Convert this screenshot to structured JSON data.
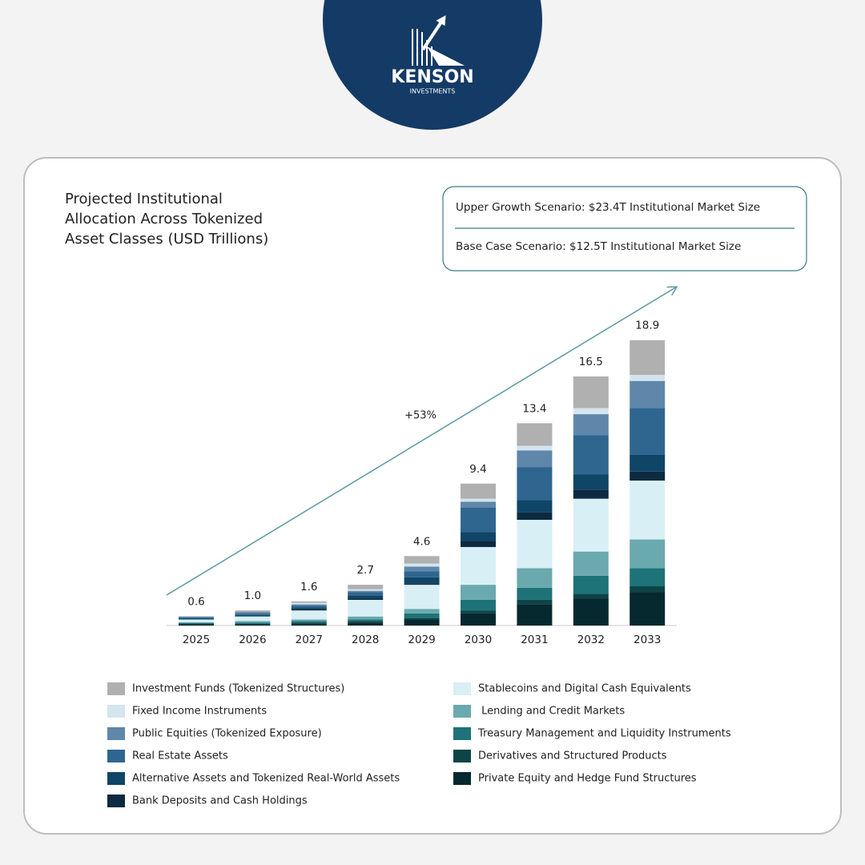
{
  "logo": {
    "name": "KENSON",
    "tagline": "INVESTMENTS"
  },
  "chart_data": {
    "type": "stacked-bar",
    "title": [
      "Projected Institutional",
      "Allocation Across Tokenized",
      "Asset Classes (USD Trillions)"
    ],
    "scenarios": [
      "Upper Growth Scenario: $23.4T Institutional Market Size",
      "Base Case Scenario: $12.5T Institutional Market Size"
    ],
    "annotation": "+53%",
    "categories": [
      "2025",
      "2026",
      "2027",
      "2028",
      "2029",
      "2030",
      "2031",
      "2032",
      "2033"
    ],
    "total_labels": [
      "0.6",
      "1.0",
      "1.6",
      "2.7",
      "4.6",
      "9.4",
      "13.4",
      "16.5",
      "18.9"
    ],
    "series": [
      {
        "name": "Private Equity and Hedge Fund Structures",
        "color": "#06282f",
        "values": [
          0.1,
          0.1,
          0.1,
          0.2,
          0.4,
          0.8,
          1.4,
          1.8,
          2.2
        ]
      },
      {
        "name": "Derivatives and Structured Products",
        "color": "#0e4446",
        "values": [
          0,
          0,
          0.1,
          0.1,
          0.1,
          0.2,
          0.3,
          0.3,
          0.4
        ]
      },
      {
        "name": "Treasury Management and Liquidity Instruments",
        "color": "#1d7378",
        "values": [
          0.1,
          0.1,
          0.1,
          0.1,
          0.3,
          0.7,
          0.8,
          1.2,
          1.2
        ]
      },
      {
        "name": " Lending and Credit Markets",
        "color": "#6aa9ad",
        "values": [
          0,
          0.1,
          0.1,
          0.2,
          0.3,
          1.0,
          1.3,
          1.6,
          1.9
        ]
      },
      {
        "name": "Stablecoins and Digital Cash Equivalents",
        "color": "#d8eff5",
        "values": [
          0.2,
          0.3,
          0.6,
          1.1,
          1.6,
          2.5,
          3.2,
          3.5,
          3.9
        ]
      },
      {
        "name": "Bank Deposits and Cash Holdings",
        "color": "#0c2a40",
        "values": [
          0,
          0,
          0.1,
          0.1,
          0.1,
          0.4,
          0.5,
          0.6,
          0.6
        ]
      },
      {
        "name": "Alternative Assets and Tokenized Real-World Assets",
        "color": "#0f4566",
        "values": [
          0.1,
          0.1,
          0.1,
          0.2,
          0.4,
          0.6,
          0.8,
          1.0,
          1.1
        ]
      },
      {
        "name": "Real Estate Assets",
        "color": "#2f6690",
        "values": [
          0,
          0.1,
          0.1,
          0.2,
          0.4,
          1.6,
          2.2,
          2.6,
          3.1
        ]
      },
      {
        "name": "Public Equities (Tokenized Exposure)",
        "color": "#5f87aa",
        "values": [
          0.1,
          0.1,
          0.1,
          0.1,
          0.3,
          0.4,
          1.1,
          1.4,
          1.8
        ]
      },
      {
        "name": "Fixed Income Instruments",
        "color": "#d4e5ef",
        "values": [
          0,
          0,
          0.1,
          0.1,
          0.2,
          0.2,
          0.3,
          0.4,
          0.4
        ]
      },
      {
        "name": "Investment Funds (Tokenized Structures)",
        "color": "#b0b0b0",
        "values": [
          0,
          0.1,
          0.1,
          0.3,
          0.5,
          1.0,
          1.5,
          2.1,
          2.3
        ]
      }
    ]
  }
}
